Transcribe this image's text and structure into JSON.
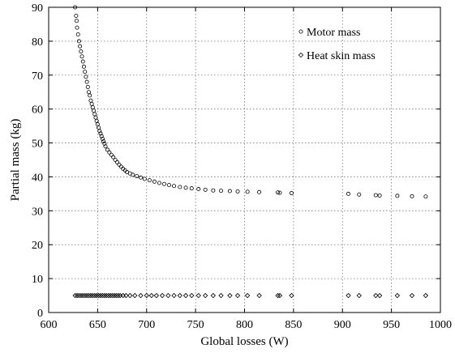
{
  "chart_data": {
    "type": "scatter",
    "title": "",
    "xlabel": "Global losses (W)",
    "ylabel": "Partial mass (kg)",
    "xlim": [
      600,
      1000
    ],
    "ylim": [
      0,
      90
    ],
    "xticks": [
      "600",
      "650",
      "700",
      "750",
      "800",
      "850",
      "900",
      "950",
      "1000"
    ],
    "yticks": [
      "0",
      "10",
      "20",
      "30",
      "40",
      "50",
      "60",
      "70",
      "80",
      "90"
    ],
    "grid": true,
    "legend_position": "top-right",
    "series": [
      {
        "name": "Motor mass",
        "marker": "circle",
        "color": "#000000",
        "points": [
          [
            627,
            90
          ],
          [
            628,
            87.5
          ],
          [
            628.5,
            86
          ],
          [
            629,
            84
          ],
          [
            630,
            82
          ],
          [
            631,
            80
          ],
          [
            632,
            78.5
          ],
          [
            633,
            77
          ],
          [
            634,
            75.5
          ],
          [
            635,
            74
          ],
          [
            636,
            72.5
          ],
          [
            637,
            71
          ],
          [
            638,
            69.5
          ],
          [
            639,
            68
          ],
          [
            640,
            66.5
          ],
          [
            641,
            65
          ],
          [
            642,
            64
          ],
          [
            643,
            62.5
          ],
          [
            644,
            61.5
          ],
          [
            645,
            60.5
          ],
          [
            646,
            59.5
          ],
          [
            647,
            58.5
          ],
          [
            648,
            57.5
          ],
          [
            649,
            56.5
          ],
          [
            650,
            55.5
          ],
          [
            651,
            54.5
          ],
          [
            652,
            53.5
          ],
          [
            653,
            52.8
          ],
          [
            654,
            52
          ],
          [
            655,
            51.2
          ],
          [
            656,
            50.5
          ],
          [
            657,
            49.8
          ],
          [
            658,
            49
          ],
          [
            660,
            48
          ],
          [
            662,
            47.2
          ],
          [
            664,
            46.5
          ],
          [
            666,
            45.8
          ],
          [
            668,
            45
          ],
          [
            670,
            44.3
          ],
          [
            672,
            43.6
          ],
          [
            674,
            43
          ],
          [
            676,
            42.4
          ],
          [
            678,
            41.9
          ],
          [
            680,
            41.4
          ],
          [
            683,
            41
          ],
          [
            686,
            40.6
          ],
          [
            690,
            40.2
          ],
          [
            694,
            39.8
          ],
          [
            698,
            39.4
          ],
          [
            703,
            39
          ],
          [
            708,
            38.6
          ],
          [
            713,
            38.2
          ],
          [
            718,
            37.9
          ],
          [
            723,
            37.6
          ],
          [
            728,
            37.3
          ],
          [
            734,
            37
          ],
          [
            740,
            36.8
          ],
          [
            746,
            36.6
          ],
          [
            753,
            36.4
          ],
          [
            760,
            36.2
          ],
          [
            768,
            36
          ],
          [
            776,
            35.9
          ],
          [
            785,
            35.8
          ],
          [
            793,
            35.7
          ],
          [
            803,
            35.6
          ],
          [
            815,
            35.5
          ],
          [
            834,
            35.4
          ],
          [
            836,
            35.3
          ],
          [
            848,
            35.2
          ],
          [
            906,
            35
          ],
          [
            917,
            34.8
          ],
          [
            934,
            34.6
          ],
          [
            938,
            34.5
          ],
          [
            956,
            34.4
          ],
          [
            971,
            34.3
          ],
          [
            985,
            34.2
          ]
        ]
      },
      {
        "name": "Heat skin mass",
        "marker": "diamond",
        "color": "#000000",
        "points": [
          [
            627,
            5
          ],
          [
            629,
            5
          ],
          [
            631,
            5
          ],
          [
            633,
            5
          ],
          [
            635,
            5
          ],
          [
            637,
            5
          ],
          [
            639,
            5
          ],
          [
            641,
            5
          ],
          [
            643,
            5
          ],
          [
            645,
            5
          ],
          [
            647,
            5
          ],
          [
            649,
            5
          ],
          [
            651,
            5
          ],
          [
            653,
            5
          ],
          [
            655,
            5
          ],
          [
            657,
            5
          ],
          [
            659,
            5
          ],
          [
            661,
            5
          ],
          [
            663,
            5
          ],
          [
            665,
            5
          ],
          [
            667,
            5
          ],
          [
            669,
            5
          ],
          [
            671,
            5
          ],
          [
            673,
            5
          ],
          [
            676,
            5
          ],
          [
            679,
            5
          ],
          [
            683,
            5
          ],
          [
            688,
            5
          ],
          [
            694,
            5
          ],
          [
            700,
            5
          ],
          [
            705,
            5
          ],
          [
            710,
            5
          ],
          [
            716,
            5
          ],
          [
            722,
            5
          ],
          [
            728,
            5
          ],
          [
            734,
            5
          ],
          [
            740,
            5
          ],
          [
            746,
            5
          ],
          [
            753,
            5
          ],
          [
            760,
            5
          ],
          [
            768,
            5
          ],
          [
            776,
            5
          ],
          [
            785,
            5
          ],
          [
            793,
            5
          ],
          [
            803,
            5
          ],
          [
            815,
            5
          ],
          [
            834,
            5
          ],
          [
            836,
            5
          ],
          [
            848,
            5
          ],
          [
            906,
            5
          ],
          [
            917,
            5
          ],
          [
            934,
            5
          ],
          [
            938,
            5
          ],
          [
            956,
            5
          ],
          [
            971,
            5
          ],
          [
            985,
            5
          ]
        ]
      }
    ]
  }
}
